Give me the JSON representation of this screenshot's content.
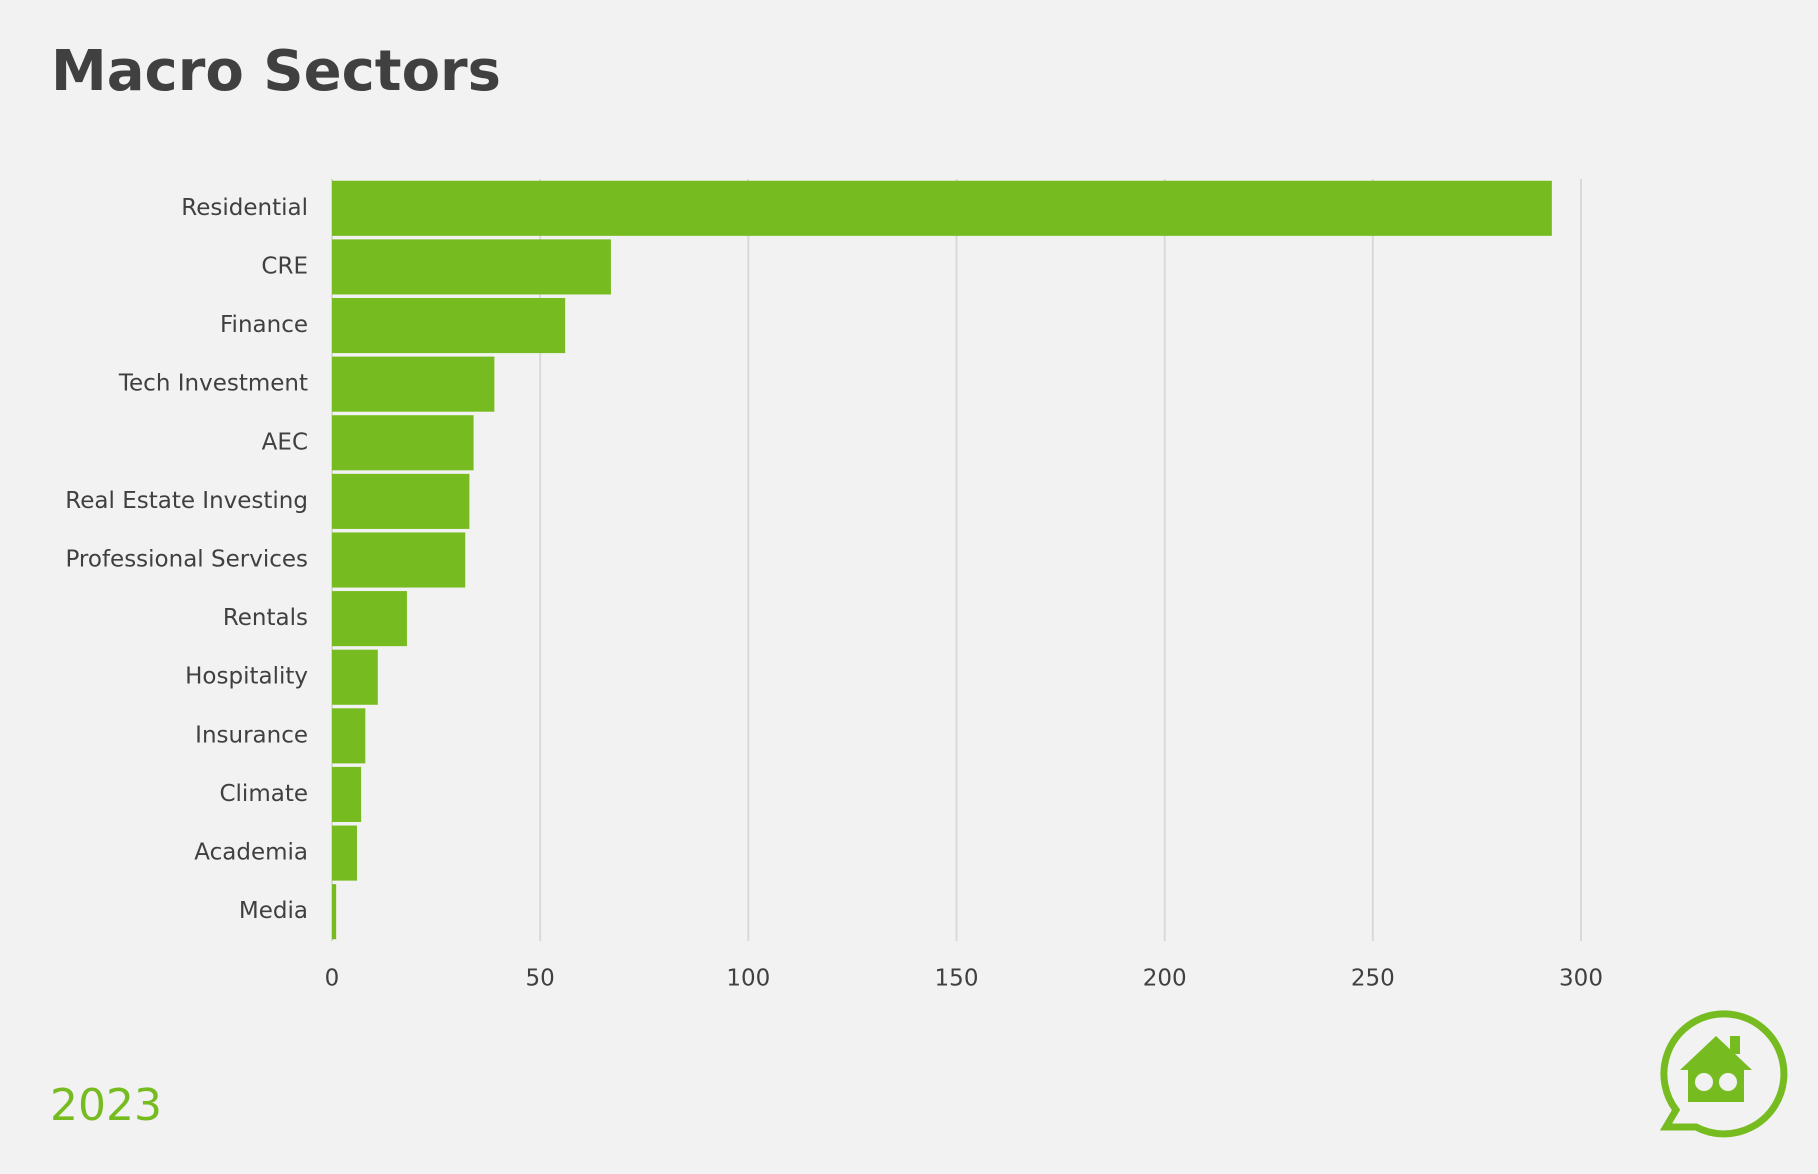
{
  "chart_data": {
    "type": "bar",
    "orientation": "horizontal",
    "title": "Macro Sectors",
    "footer": "2023",
    "categories": [
      "Residential",
      "CRE",
      "Finance",
      "Tech Investment",
      "AEC",
      "Real Estate Investing",
      "Professional Services",
      "Rentals",
      "Hospitality",
      "Insurance",
      "Climate",
      "Academia",
      "Media"
    ],
    "values": [
      293,
      67,
      56,
      39,
      34,
      33,
      32,
      18,
      11,
      8,
      7,
      6,
      1
    ],
    "color": "#76bc21",
    "xlim": [
      0,
      300
    ],
    "xticks": [
      0,
      50,
      100,
      150,
      200,
      250,
      300
    ],
    "grid": true
  }
}
